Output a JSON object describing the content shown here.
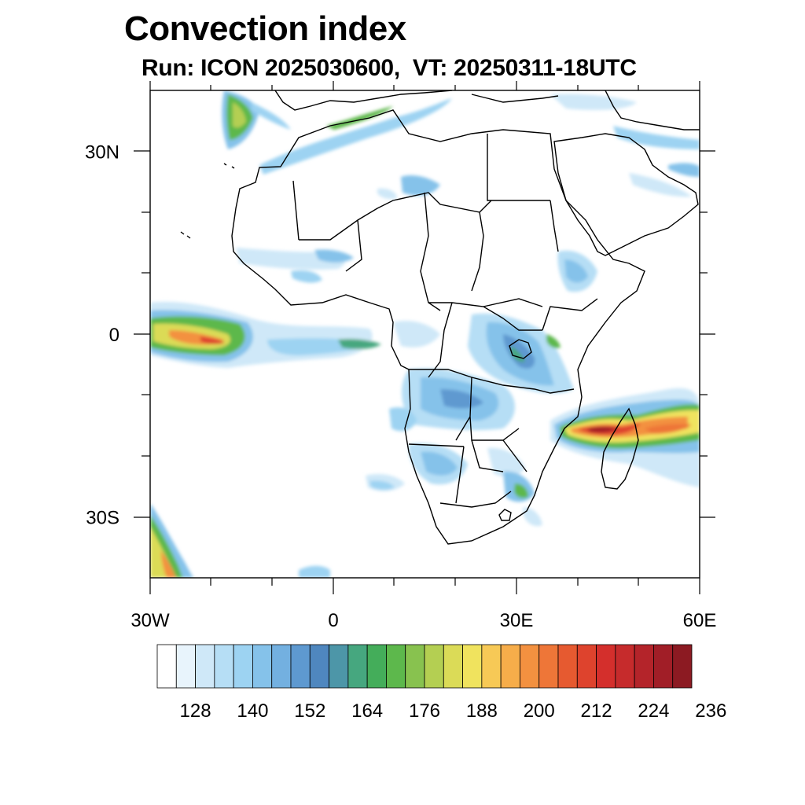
{
  "title": "Convection index",
  "subtitle": "Run: ICON 2025030600,  VT: 20250311-18UTC",
  "map": {
    "lon_range": [
      -30,
      60
    ],
    "lat_range": [
      -40,
      40
    ],
    "lon_labels": [
      {
        "lon": -30,
        "label": "30W"
      },
      {
        "lon": 0,
        "label": "0"
      },
      {
        "lon": 30,
        "label": "30E"
      },
      {
        "lon": 60,
        "label": "60E"
      }
    ],
    "lat_labels": [
      {
        "lat": 30,
        "label": "30N"
      },
      {
        "lat": 0,
        "label": "0"
      },
      {
        "lat": -30,
        "label": "30S"
      }
    ]
  },
  "colorbar": {
    "colors": [
      "#ffffff",
      "#e8f4fc",
      "#cfe8f8",
      "#b6def5",
      "#9dd3f2",
      "#85c2ea",
      "#73b0e0",
      "#5e99d0",
      "#4f87bf",
      "#4d96a8",
      "#46a77f",
      "#44ad5a",
      "#5db84c",
      "#88c24f",
      "#b4cf52",
      "#dbdb57",
      "#f0e35e",
      "#f7c956",
      "#f6ad4a",
      "#f39140",
      "#ee7638",
      "#e65a30",
      "#de432d",
      "#d42f2c",
      "#c62b2c",
      "#b4242a",
      "#a11e27",
      "#8c1a22"
    ],
    "tick_labels": [
      "128",
      "140",
      "152",
      "164",
      "176",
      "188",
      "200",
      "212",
      "224",
      "236"
    ]
  }
}
